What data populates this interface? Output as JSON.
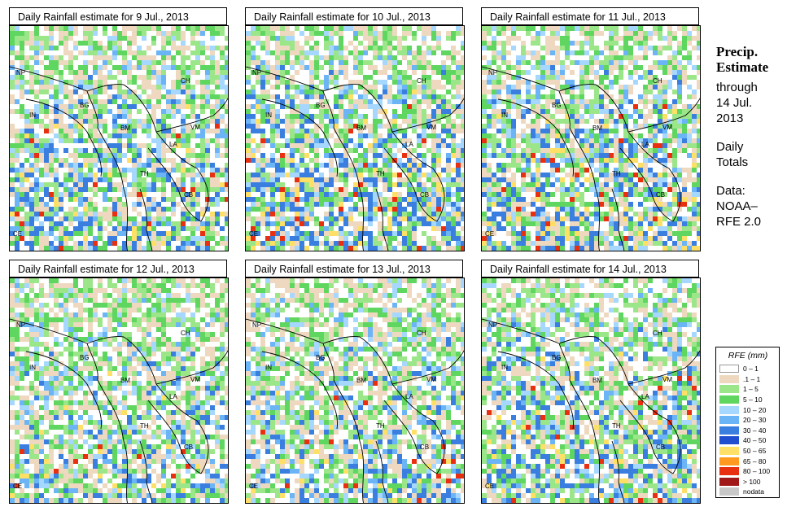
{
  "panels": [
    {
      "title": "Daily Rainfall estimate for  9 Jul., 2013",
      "intensity": 0.35,
      "seed": 11
    },
    {
      "title": "Daily Rainfall estimate for  10 Jul., 2013",
      "intensity": 0.55,
      "seed": 23
    },
    {
      "title": "Daily Rainfall estimate for  11 Jul., 2013",
      "intensity": 0.45,
      "seed": 37
    },
    {
      "title": "Daily Rainfall estimate for  12 Jul., 2013",
      "intensity": 0.25,
      "seed": 41
    },
    {
      "title": "Daily Rainfall estimate for  13 Jul., 2013",
      "intensity": 0.3,
      "seed": 53
    },
    {
      "title": "Daily Rainfall estimate for  14 Jul., 2013",
      "intensity": 0.4,
      "seed": 67
    }
  ],
  "country_labels": [
    "NP",
    "IN",
    "BG",
    "CH",
    "BM",
    "VM",
    "LA",
    "TH",
    "CB",
    "CE"
  ],
  "side_text": {
    "heading_line1": "Precip.",
    "heading_line2": "Estimate",
    "through": "through",
    "date_line1": "14 Jul.",
    "date_line2": "2013",
    "daily_line1": "Daily",
    "daily_line2": "Totals",
    "data_line1": "Data:",
    "data_line2": "NOAA–",
    "data_line3": "RFE 2.0"
  },
  "legend": {
    "title": "RFE (mm)",
    "items": [
      {
        "label": "0 – 1",
        "color": "#ffffff"
      },
      {
        "label": ".1 – 1",
        "color": "#eed9c0"
      },
      {
        "label": "1 – 5",
        "color": "#9ce68a"
      },
      {
        "label": "5 – 10",
        "color": "#5fd65f"
      },
      {
        "label": "10 – 20",
        "color": "#a6d8ff"
      },
      {
        "label": "20 – 30",
        "color": "#6bb4f5"
      },
      {
        "label": "30 – 40",
        "color": "#3a7fe0"
      },
      {
        "label": "40 – 50",
        "color": "#1f4fd0"
      },
      {
        "label": "50 – 65",
        "color": "#ffe066"
      },
      {
        "label": "65 – 80",
        "color": "#ff9a1f"
      },
      {
        "label": "80 – 100",
        "color": "#e83010"
      },
      {
        "label": "> 100",
        "color": "#a01818"
      },
      {
        "label": "nodata",
        "color": "#c8c8c8"
      }
    ]
  }
}
